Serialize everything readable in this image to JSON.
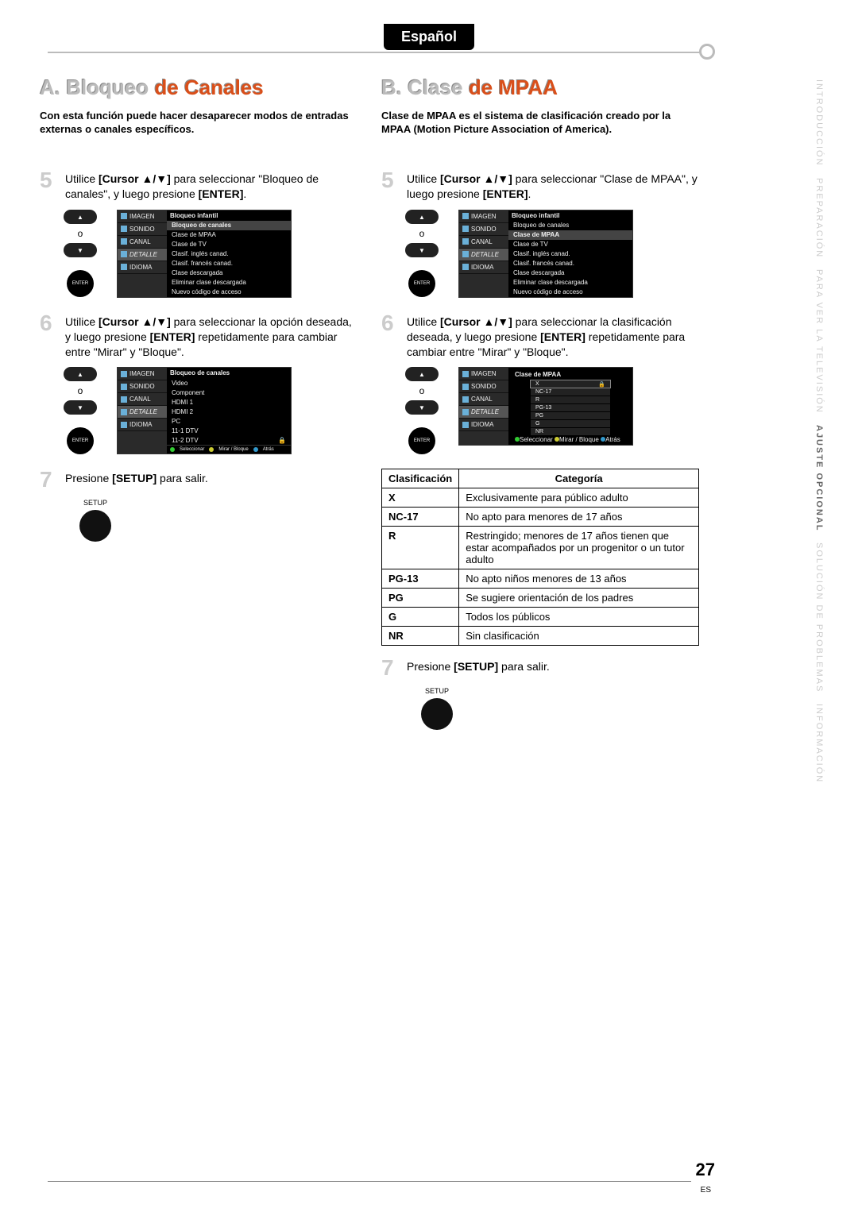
{
  "language_tab": "Español",
  "side_nav": {
    "items": [
      {
        "label": "INTRODUCCIÓN",
        "active": false
      },
      {
        "label": "PREPARACIÓN",
        "active": false
      },
      {
        "label": "PARA VER LA TELEVISIÓN",
        "active": false
      },
      {
        "label": "AJUSTE OPCIONAL",
        "active": true
      },
      {
        "label": "SOLUCIÓN DE PROBLEMAS",
        "active": false
      },
      {
        "label": "INFORMACIÓN",
        "active": false
      }
    ]
  },
  "colA": {
    "title_pre": "A. Bloqueo ",
    "title_red": "de Canales",
    "intro": "Con esta función puede hacer desaparecer modos de entradas externas o canales específicos.",
    "step5_a": "Utilice ",
    "step5_b": "[Cursor ▲/▼]",
    "step5_c": " para seleccionar \"Bloqueo de canales\", y luego presione ",
    "step5_d": "[ENTER]",
    "step5_e": ".",
    "step6_a": "Utilice ",
    "step6_b": "[Cursor ▲/▼]",
    "step6_c": " para seleccionar la opción deseada, y luego presione ",
    "step6_d": "[ENTER]",
    "step6_e": " repetidamente para cambiar entre \"Mirar\" y \"Bloque\".",
    "step7_a": "Presione ",
    "step7_b": "[SETUP]",
    "step7_c": " para salir."
  },
  "colB": {
    "title_pre": "B. Clase ",
    "title_red": "de MPAA",
    "intro": "Clase de MPAA es el sistema de clasificación creado por la MPAA (Motion Picture Association of America).",
    "step5_a": "Utilice ",
    "step5_b": "[Cursor ▲/▼]",
    "step5_c": " para seleccionar \"Clase de MPAA\", y luego presione ",
    "step5_d": "[ENTER]",
    "step5_e": ".",
    "step6_a": "Utilice ",
    "step6_b": "[Cursor ▲/▼]",
    "step6_c": " para seleccionar la clasificación deseada, y luego presione ",
    "step6_d": "[ENTER]",
    "step6_e": " repetidamente para cambiar entre \"Mirar\" y \"Bloque\".",
    "step7_a": "Presione ",
    "step7_b": "[SETUP]",
    "step7_c": " para salir."
  },
  "remote": {
    "or": "o",
    "enter": "ENTER",
    "setup": "SETUP"
  },
  "menu_side_items": [
    "IMAGEN",
    "SONIDO",
    "CANAL",
    "DETALLE",
    "IDIOMA"
  ],
  "menu1_title": "Bloqueo infantil",
  "menu1_rows": [
    "Bloqueo de canales",
    "Clase de MPAA",
    "Clase de TV",
    "Clasif. inglés canad.",
    "Clasif. francés canad.",
    "Clase descargada",
    "Eliminar clase descargada",
    "Nuevo código de acceso"
  ],
  "menu1_hl": 0,
  "menu1b_hl": 1,
  "menu2_title": "Bloqueo de canales",
  "menu2_rows": [
    "Video",
    "Component",
    "HDMI 1",
    "HDMI 2",
    "PC",
    "11-1 DTV",
    "11-2 DTV"
  ],
  "menu2_footer": {
    "a": "Seleccionar",
    "b": "Mirar / Bloque",
    "c": "Atrás"
  },
  "menu3_title": "Clase de MPAA",
  "menu3_rows": [
    "X",
    "NC-17",
    "R",
    "PG-13",
    "PG",
    "G",
    "NR"
  ],
  "class_table": {
    "h1": "Clasificación",
    "h2": "Categoría",
    "rows": [
      {
        "c": "X",
        "d": "Exclusivamente para público adulto"
      },
      {
        "c": "NC-17",
        "d": "No apto para menores de 17 años"
      },
      {
        "c": "R",
        "d": "Restringido; menores de 17 años tienen que estar acompañados por un progenitor o un tutor adulto"
      },
      {
        "c": "PG-13",
        "d": "No apto niños menores de 13 años"
      },
      {
        "c": "PG",
        "d": "Se sugiere orientación de los padres"
      },
      {
        "c": "G",
        "d": "Todos los públicos"
      },
      {
        "c": "NR",
        "d": "Sin clasificación"
      }
    ]
  },
  "page_number": "27",
  "es": "ES",
  "colors": {
    "red": "#d94f1a",
    "grey": "#bbbbbb",
    "menu_bg": "#1a1a1a"
  }
}
